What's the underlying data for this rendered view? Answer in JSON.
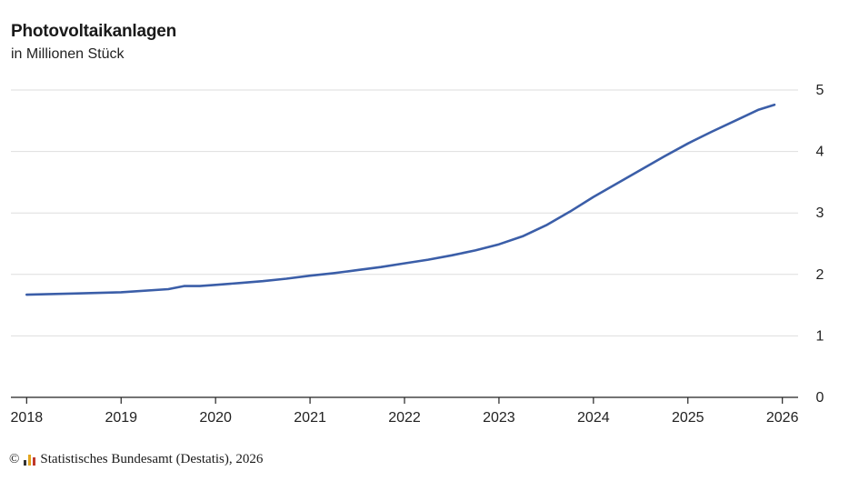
{
  "chart_data": {
    "type": "line",
    "title": "Photovoltaikanlagen",
    "subtitle": "in Millionen Stück",
    "xlabel": "",
    "ylabel": "",
    "x_ticks": [
      "2018",
      "2019",
      "2020",
      "2021",
      "2022",
      "2023",
      "2024",
      "2025",
      "2026"
    ],
    "y_ticks": [
      "0",
      "1",
      "2",
      "3",
      "4",
      "5"
    ],
    "ylim": [
      0,
      5
    ],
    "xlim": [
      "2017-11",
      "2026-03"
    ],
    "grid": true,
    "y_axis_position": "right",
    "line_color": "#3b5ea8",
    "series": [
      {
        "points": [
          [
            "2018-01",
            1.67
          ],
          [
            "2018-07",
            1.69
          ],
          [
            "2019-01",
            1.71
          ],
          [
            "2019-07",
            1.76
          ],
          [
            "2019-09",
            1.81
          ],
          [
            "2019-11",
            1.81
          ],
          [
            "2020-01",
            1.83
          ],
          [
            "2020-04",
            1.86
          ],
          [
            "2020-07",
            1.89
          ],
          [
            "2020-10",
            1.93
          ],
          [
            "2021-01",
            1.98
          ],
          [
            "2021-04",
            2.02
          ],
          [
            "2021-07",
            2.07
          ],
          [
            "2021-10",
            2.12
          ],
          [
            "2022-01",
            2.18
          ],
          [
            "2022-04",
            2.24
          ],
          [
            "2022-07",
            2.31
          ],
          [
            "2022-10",
            2.39
          ],
          [
            "2023-01",
            2.49
          ],
          [
            "2023-04",
            2.62
          ],
          [
            "2023-07",
            2.8
          ],
          [
            "2023-10",
            3.02
          ],
          [
            "2024-01",
            3.26
          ],
          [
            "2024-04",
            3.48
          ],
          [
            "2024-07",
            3.7
          ],
          [
            "2024-10",
            3.92
          ],
          [
            "2025-01",
            4.13
          ],
          [
            "2025-04",
            4.32
          ],
          [
            "2025-07",
            4.5
          ],
          [
            "2025-10",
            4.68
          ],
          [
            "2025-12",
            4.76
          ]
        ]
      }
    ]
  },
  "footer": {
    "copyright_symbol": "©",
    "source": "Statistisches Bundesamt (Destatis), 2026",
    "logo_colors": [
      "#333333",
      "#e3a51d",
      "#c0392b"
    ]
  }
}
